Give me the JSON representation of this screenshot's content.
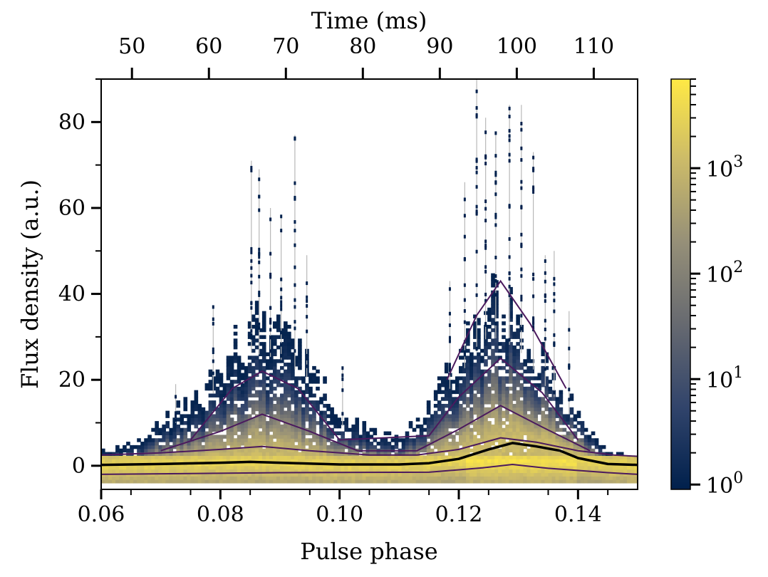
{
  "chart_data": {
    "type": "heatmap",
    "title": "",
    "xlabel": "Pulse phase",
    "ylabel": "Flux density (a.u.)",
    "top_xlabel": "Time (ms)",
    "x_range": [
      0.06,
      0.15
    ],
    "y_range": [
      -5.5,
      90
    ],
    "x_ticks": [
      0.06,
      0.08,
      0.1,
      0.12,
      0.14
    ],
    "x_tick_labels": [
      "0.06",
      "0.08",
      "0.10",
      "0.12",
      "0.14"
    ],
    "y_ticks": [
      0,
      20,
      40,
      60,
      80
    ],
    "y_tick_labels": [
      "0",
      "20",
      "40",
      "60",
      "80"
    ],
    "top_x_range": [
      46.0,
      115.7
    ],
    "top_x_ticks": [
      50,
      60,
      70,
      80,
      90,
      100,
      110
    ],
    "top_x_tick_labels": [
      "50",
      "60",
      "70",
      "80",
      "90",
      "100",
      "110"
    ],
    "colorbar": {
      "scale": "log",
      "range": [
        0.9,
        7000
      ],
      "ticks": [
        1,
        10,
        100,
        1000
      ],
      "tick_labels": [
        "10^0",
        "10^1",
        "10^2",
        "10^3"
      ],
      "colormap": [
        "#00204c",
        "#31446b",
        "#666970",
        "#958f78",
        "#cbba69",
        "#ffe945"
      ]
    },
    "mean_profile": {
      "color": "#000000",
      "phase": [
        0.06,
        0.07,
        0.08,
        0.085,
        0.09,
        0.1,
        0.11,
        0.115,
        0.12,
        0.125,
        0.129,
        0.133,
        0.137,
        0.14,
        0.145,
        0.15
      ],
      "flux": [
        0.2,
        0.4,
        0.7,
        0.9,
        0.7,
        0.3,
        0.3,
        0.6,
        1.6,
        3.8,
        5.3,
        4.5,
        3.5,
        1.8,
        0.4,
        0.2
      ]
    },
    "contours": [
      {
        "phase": [
          0.06,
          0.07,
          0.08,
          0.087,
          0.095,
          0.105,
          0.113,
          0.12,
          0.127,
          0.133,
          0.14,
          0.146,
          0.15
        ],
        "flux": [
          2.5,
          3.0,
          3.8,
          4.5,
          3.5,
          2.5,
          2.5,
          3.8,
          6.5,
          5.5,
          3.5,
          2.5,
          2.2
        ]
      },
      {
        "phase": [
          0.07,
          0.08,
          0.087,
          0.095,
          0.103,
          0.113,
          0.12,
          0.127,
          0.134,
          0.142
        ],
        "flux": [
          3.5,
          8.0,
          12.0,
          8.0,
          3.5,
          3.5,
          8.5,
          14.0,
          9.0,
          3.5
        ]
      },
      {
        "phase": [
          0.075,
          0.082,
          0.087,
          0.093,
          0.1,
          0.115,
          0.12,
          0.127,
          0.134,
          0.14
        ],
        "flux": [
          6.0,
          18.0,
          22.0,
          18.0,
          6.0,
          7.0,
          16.0,
          25.0,
          17.0,
          6.0
        ]
      },
      {
        "phase": [
          0.118,
          0.123,
          0.127,
          0.132,
          0.138
        ],
        "flux": [
          20.0,
          35.0,
          43.0,
          33.0,
          18.0
        ]
      },
      {
        "phase": [
          0.06,
          0.09,
          0.115,
          0.124,
          0.129,
          0.135,
          0.145,
          0.15
        ],
        "flux": [
          -2.0,
          -1.6,
          -1.5,
          -0.5,
          0.3,
          -0.6,
          -1.6,
          -2.0
        ]
      }
    ],
    "envelope": {
      "phase": [
        0.06,
        0.065,
        0.07,
        0.075,
        0.08,
        0.085,
        0.09,
        0.095,
        0.1,
        0.105,
        0.11,
        0.115,
        0.12,
        0.125,
        0.13,
        0.135,
        0.14,
        0.143,
        0.146,
        0.15
      ],
      "max_flux": [
        3,
        5,
        10,
        15,
        23,
        33,
        31,
        25,
        12,
        8,
        6,
        14,
        26,
        38,
        34,
        22,
        12,
        5,
        3,
        2
      ]
    },
    "spikes": {
      "phase": [
        0.0725,
        0.0788,
        0.0852,
        0.0865,
        0.0884,
        0.0902,
        0.0925,
        0.0945,
        0.1005,
        0.1185,
        0.121,
        0.123,
        0.1245,
        0.1262,
        0.1285,
        0.1305,
        0.1325,
        0.1345,
        0.136,
        0.1385
      ],
      "flux": [
        19,
        37,
        71,
        69,
        60,
        58,
        77,
        49,
        23,
        43,
        66,
        90,
        81,
        77,
        84,
        84,
        73,
        49,
        50,
        36
      ]
    }
  }
}
